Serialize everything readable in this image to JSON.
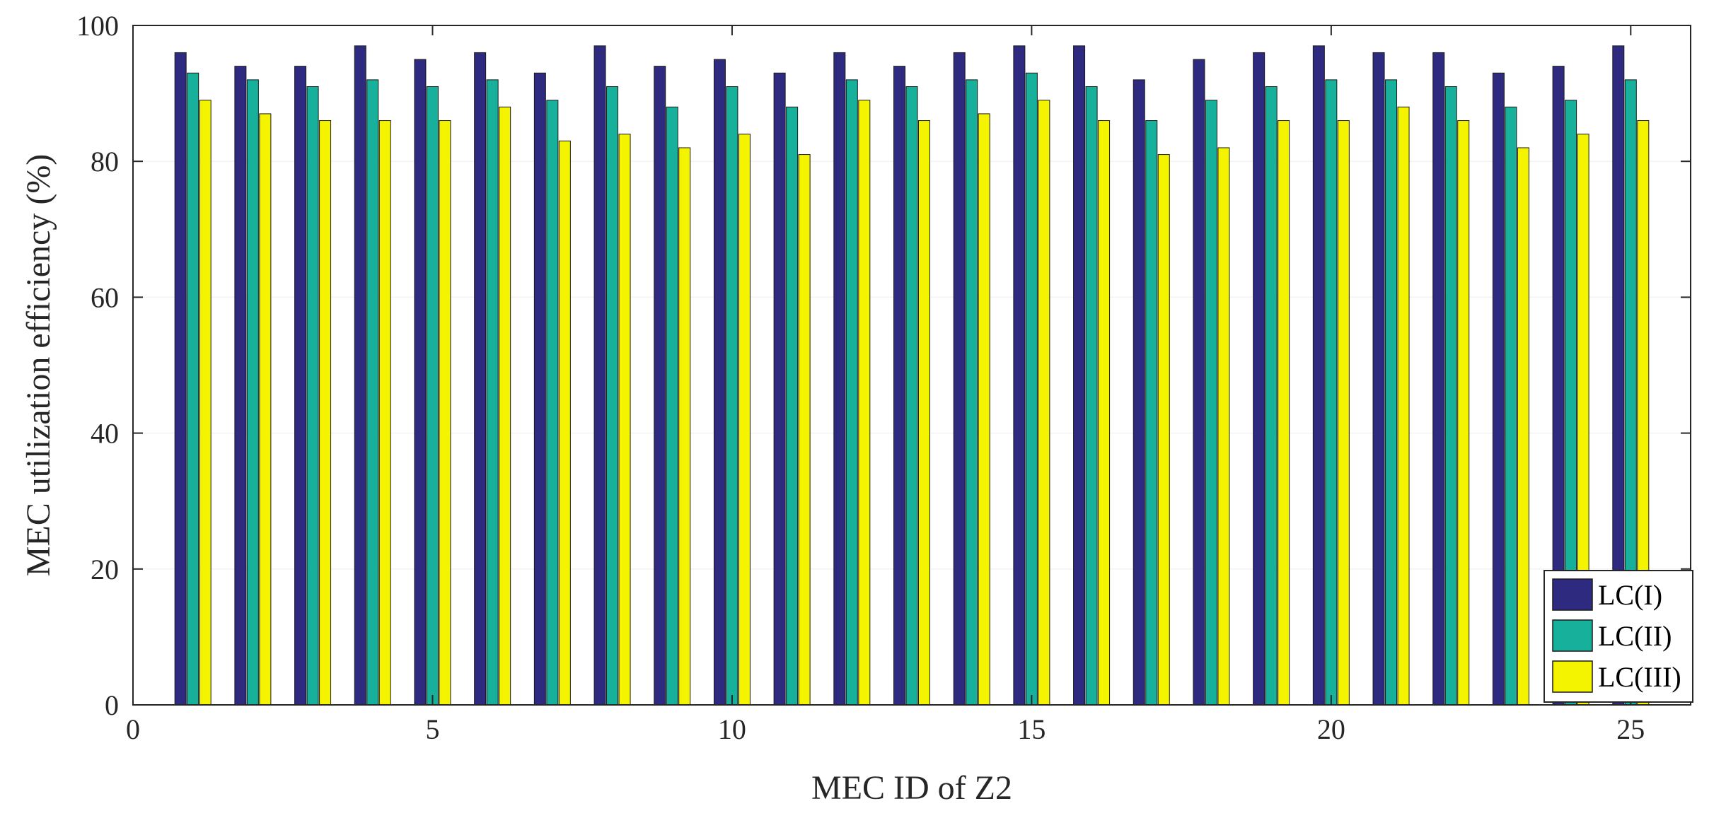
{
  "chart_data": {
    "type": "bar",
    "xlabel": "MEC ID of Z2",
    "ylabel": "MEC utilization efficiency (%)",
    "xlim": [
      0,
      26
    ],
    "ylim": [
      0,
      100
    ],
    "x_ticks": [
      0,
      5,
      10,
      15,
      20,
      25
    ],
    "y_ticks": [
      0,
      20,
      40,
      60,
      80,
      100
    ],
    "grid": false,
    "legend_position": "bottom-right",
    "categories": [
      1,
      2,
      3,
      4,
      5,
      6,
      7,
      8,
      9,
      10,
      11,
      12,
      13,
      14,
      15,
      16,
      17,
      18,
      19,
      20,
      21,
      22,
      23,
      24,
      25
    ],
    "series": [
      {
        "name": "LC(I)",
        "color": "#2e2a7f",
        "values": [
          96,
          94,
          94,
          97,
          95,
          96,
          93,
          97,
          94,
          95,
          93,
          96,
          94,
          96,
          97,
          97,
          92,
          95,
          96,
          97,
          96,
          96,
          93,
          94,
          97
        ]
      },
      {
        "name": "LC(II)",
        "color": "#17b09a",
        "values": [
          93,
          92,
          91,
          92,
          91,
          92,
          89,
          91,
          88,
          91,
          88,
          92,
          91,
          92,
          93,
          91,
          86,
          89,
          91,
          92,
          92,
          91,
          88,
          89,
          92
        ]
      },
      {
        "name": "LC(III)",
        "color": "#f4f400",
        "values": [
          89,
          87,
          86,
          86,
          86,
          88,
          83,
          84,
          82,
          84,
          81,
          89,
          86,
          87,
          89,
          86,
          81,
          82,
          86,
          86,
          88,
          86,
          82,
          84,
          86
        ]
      }
    ]
  }
}
